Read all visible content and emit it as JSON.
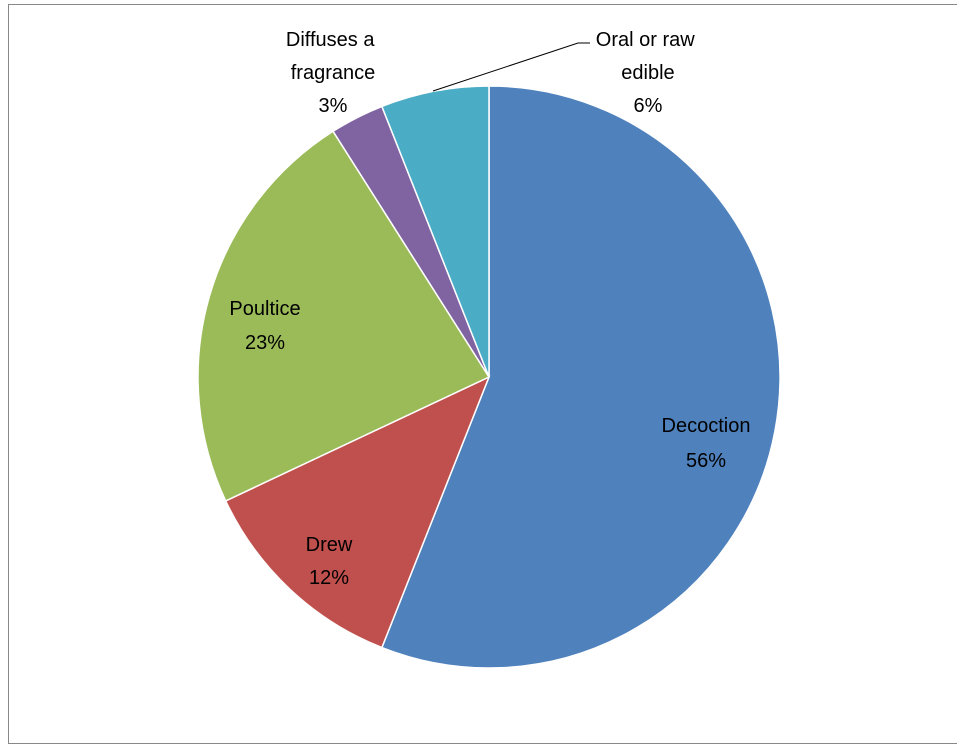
{
  "chart_data": {
    "type": "pie",
    "title": "",
    "start_angle_deg": 0,
    "direction": "clockwise",
    "slices": [
      {
        "label": "Decoction",
        "value": 56,
        "value_label": "56%",
        "color": "#4F81BD"
      },
      {
        "label": "Drew",
        "value": 12,
        "value_label": "12%",
        "color": "#C0504D"
      },
      {
        "label": "Poultice",
        "value": 23,
        "value_label": "23%",
        "color": "#9BBB59"
      },
      {
        "label": "Diffuses a fragrance",
        "value": 3,
        "value_label": "3%",
        "color": "#8064A2"
      },
      {
        "label": "Oral or raw edible",
        "value": 6,
        "value_label": "6%",
        "color": "#4BACC6"
      }
    ]
  }
}
